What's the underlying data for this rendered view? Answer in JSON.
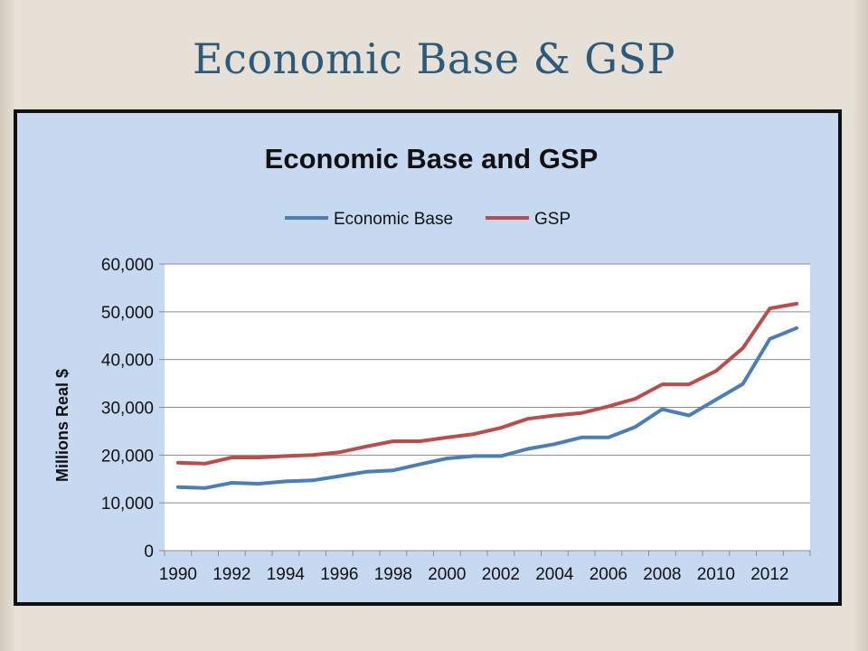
{
  "slide": {
    "title": "Economic Base & GSP"
  },
  "chart_data": {
    "type": "line",
    "title": "Economic Base and GSP",
    "ylabel": "Millions Real $",
    "xlabel": "",
    "x": [
      1990,
      1991,
      1992,
      1993,
      1994,
      1995,
      1996,
      1997,
      1998,
      1999,
      2000,
      2001,
      2002,
      2003,
      2004,
      2005,
      2006,
      2007,
      2008,
      2009,
      2010,
      2011,
      2012,
      2013
    ],
    "x_tick_labels": [
      "1990",
      "1992",
      "1994",
      "1996",
      "1998",
      "2000",
      "2002",
      "2004",
      "2006",
      "2008",
      "2010",
      "2012"
    ],
    "y_tick_labels": [
      "0",
      "10,000",
      "20,000",
      "30,000",
      "40,000",
      "50,000",
      "60,000"
    ],
    "ylim": [
      0,
      60000
    ],
    "legend_position": "top",
    "grid": "horizontal",
    "series": [
      {
        "name": "Economic Base",
        "color": "#4a7ebb",
        "values": [
          13300,
          13100,
          14200,
          14000,
          14500,
          14700,
          15600,
          16500,
          16800,
          18100,
          19300,
          19800,
          19800,
          21300,
          22300,
          23700,
          23700,
          25900,
          29600,
          28300,
          31600,
          34900,
          44300,
          46600
        ]
      },
      {
        "name": "GSP",
        "color": "#be4b48",
        "values": [
          18400,
          18200,
          19500,
          19500,
          19800,
          20000,
          20600,
          21800,
          22900,
          22900,
          23700,
          24400,
          25700,
          27600,
          28300,
          28800,
          30200,
          31800,
          34800,
          34800,
          37600,
          42400,
          50700,
          51700
        ]
      }
    ]
  }
}
